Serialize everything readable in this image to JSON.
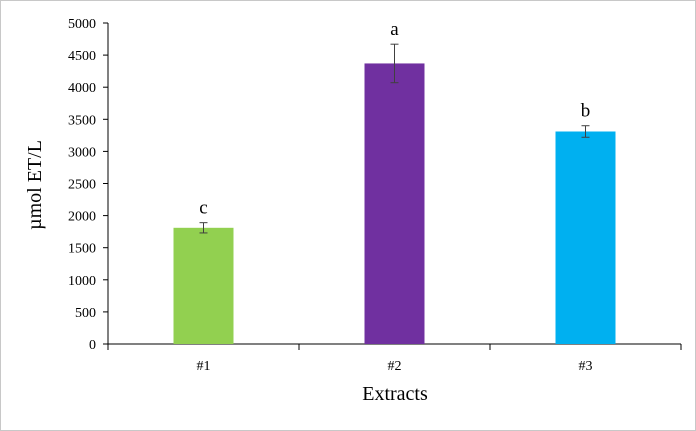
{
  "chart_data": {
    "type": "bar",
    "categories": [
      "#1",
      "#2",
      "#3"
    ],
    "values": [
      1810,
      4370,
      3310
    ],
    "errors": [
      80,
      300,
      90
    ],
    "significance": [
      "c",
      "a",
      "b"
    ],
    "colors": [
      "#92d050",
      "#7030a0",
      "#00b0f0"
    ],
    "ylim": [
      0,
      5000
    ],
    "yticks": [
      0,
      500,
      1000,
      1500,
      2000,
      2500,
      3000,
      3500,
      4000,
      4500,
      5000
    ],
    "title": "",
    "xlabel": "Extracts",
    "ylabel": "µmol ET/L",
    "grid": false
  }
}
